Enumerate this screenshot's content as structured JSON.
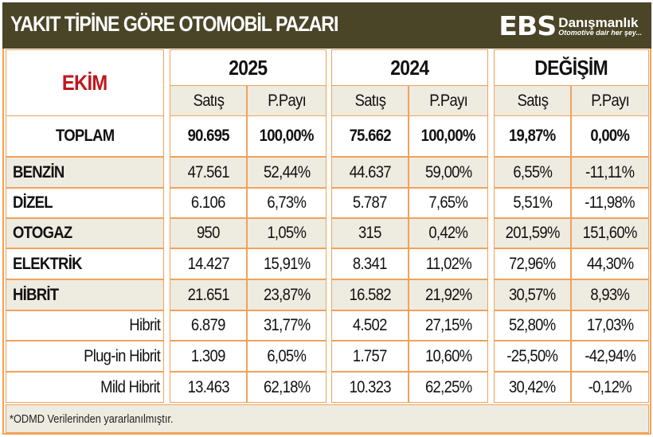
{
  "title": "YAKIT TİPİNE GÖRE OTOMOBİL PAZARI",
  "logo": {
    "mark": "EBS",
    "name": "Danışmanlık",
    "tagline": "Otomotive dair her şey..."
  },
  "colors": {
    "header_bg": "#4a4527",
    "border": "#f0a25a",
    "month": "#c0161c",
    "row_shade": "#eeebe1"
  },
  "month": "EKİM",
  "groups": [
    "2025",
    "2024",
    "DEĞİŞİM"
  ],
  "subheaders": [
    "Satış",
    "P.Payı",
    "Satış",
    "P.Payı",
    "Satış",
    "P.Payı"
  ],
  "rows": [
    {
      "label": "TOPLAM",
      "values": [
        "90.695",
        "100,00%",
        "75.662",
        "100,00%",
        "19,87%",
        "0,00%"
      ]
    },
    {
      "label": "BENZİN",
      "values": [
        "47.561",
        "52,44%",
        "44.637",
        "59,00%",
        "6,55%",
        "-11,11%"
      ]
    },
    {
      "label": "DİZEL",
      "values": [
        "6.106",
        "6,73%",
        "5.787",
        "7,65%",
        "5,51%",
        "-11,98%"
      ]
    },
    {
      "label": "OTOGAZ",
      "values": [
        "950",
        "1,05%",
        "315",
        "0,42%",
        "201,59%",
        "151,60%"
      ]
    },
    {
      "label": "ELEKTRİK",
      "values": [
        "14.427",
        "15,91%",
        "8.341",
        "11,02%",
        "72,96%",
        "44,30%"
      ]
    },
    {
      "label": "HİBRİT",
      "values": [
        "21.651",
        "23,87%",
        "16.582",
        "21,92%",
        "30,57%",
        "8,93%"
      ]
    },
    {
      "label": "Hibrit",
      "values": [
        "6.879",
        "31,77%",
        "4.502",
        "27,15%",
        "52,80%",
        "17,03%"
      ]
    },
    {
      "label": "Plug-in Hibrit",
      "values": [
        "1.309",
        "6,05%",
        "1.757",
        "10,60%",
        "-25,50%",
        "-42,94%"
      ]
    },
    {
      "label": "Mild Hibrit",
      "values": [
        "13.463",
        "62,18%",
        "10.323",
        "62,25%",
        "30,42%",
        "-0,12%"
      ]
    }
  ],
  "footnote": "*ODMD Verilerinden yararlanılmıştır."
}
